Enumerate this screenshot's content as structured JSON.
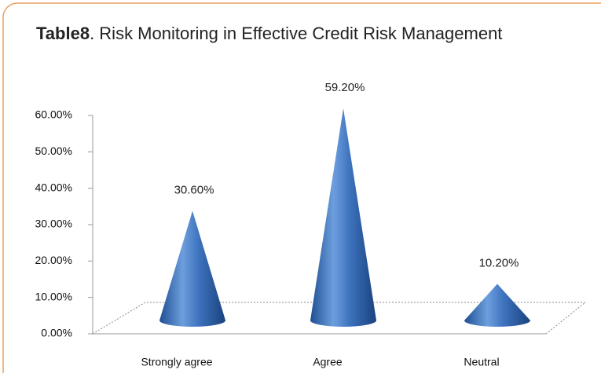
{
  "chart_data": {
    "type": "cone",
    "title_parts": [
      "Table8",
      ". Risk Monitoring in Effective Credit Risk Management"
    ],
    "categories": [
      "Strongly agree",
      "Agree",
      "Neutral"
    ],
    "values": [
      30.6,
      59.2,
      10.2
    ],
    "value_labels": [
      "30.60%",
      "59.20%",
      "10.20%"
    ],
    "color": "#3a6fb8",
    "ylim": [
      0,
      60
    ],
    "yticks": [
      {
        "value": 0,
        "label": "0.00%"
      },
      {
        "value": 10,
        "label": "10.00%"
      },
      {
        "value": 20,
        "label": "20.00%"
      },
      {
        "value": 30,
        "label": "30.00%"
      },
      {
        "value": 40,
        "label": "40.00%"
      },
      {
        "value": 50,
        "label": "50.00%"
      },
      {
        "value": 60,
        "label": "60.00%"
      }
    ]
  }
}
